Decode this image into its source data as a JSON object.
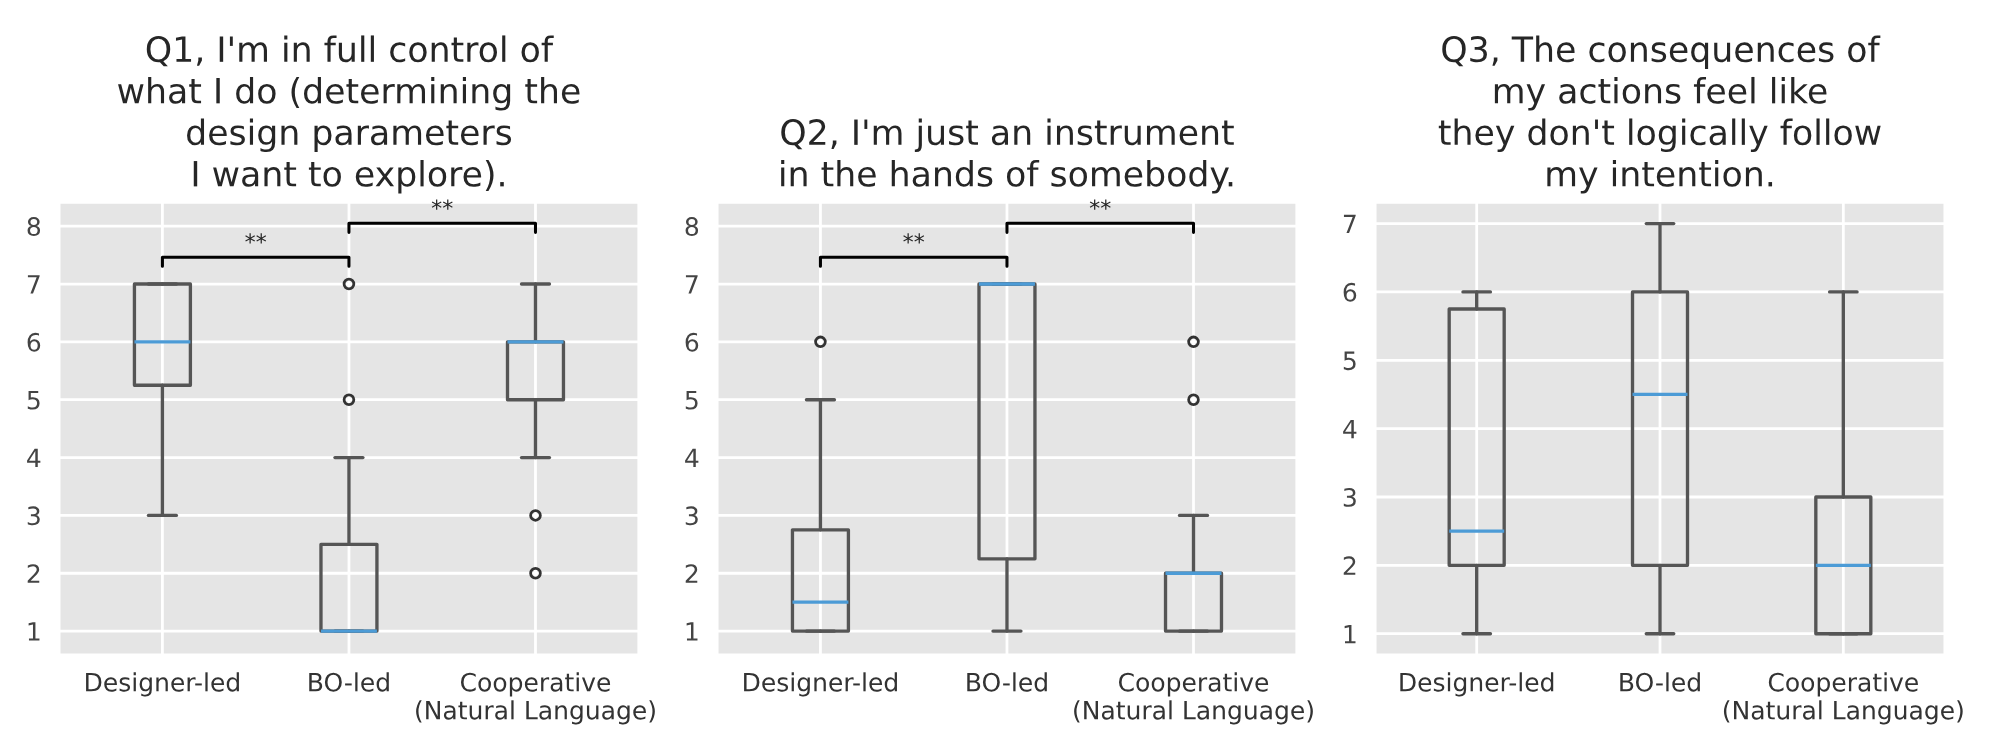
{
  "chart_data": [
    {
      "type": "box",
      "title": "Q1, I'm in full control of\nwhat I do (determining the\ndesign parameters\nI want to explore).",
      "categories": [
        "Designer-led",
        "BO-led",
        "Cooperative\n(Natural Language)"
      ],
      "boxes": [
        {
          "low": 3,
          "q1": 5.25,
          "median": 6,
          "q3": 7,
          "high": 7
        },
        {
          "low": 1,
          "q1": 1,
          "median": 1,
          "q3": 2.5,
          "high": 4,
          "outliers": [
            5,
            7
          ]
        },
        {
          "low": 4,
          "q1": 5,
          "median": 6,
          "q3": 6,
          "high": 7,
          "outliers": [
            2,
            3
          ]
        }
      ],
      "ylim": [
        0.6,
        8.4
      ],
      "yticks": [
        1,
        2,
        3,
        4,
        5,
        6,
        7,
        8
      ],
      "grid": true,
      "annotations": [
        "**",
        "**"
      ]
    },
    {
      "type": "box",
      "title": "Q2, I'm just an instrument\nin the hands of somebody.",
      "categories": [
        "Designer-led",
        "BO-led",
        "Cooperative\n(Natural Language)"
      ],
      "boxes": [
        {
          "low": 1,
          "q1": 1,
          "median": 1.5,
          "q3": 2.75,
          "high": 5,
          "outliers": [
            6
          ]
        },
        {
          "low": 1,
          "q1": 2.25,
          "median": 7,
          "q3": 7,
          "high": 7
        },
        {
          "low": 1,
          "q1": 1,
          "median": 2,
          "q3": 2,
          "high": 3,
          "outliers": [
            5,
            6
          ]
        }
      ],
      "ylim": [
        0.6,
        8.4
      ],
      "yticks": [
        1,
        2,
        3,
        4,
        5,
        6,
        7,
        8
      ],
      "grid": true,
      "annotations": [
        "**",
        "**"
      ]
    },
    {
      "type": "box",
      "title": "Q3, The consequences of\nmy actions feel like\nthey don't logically follow\nmy intention.",
      "categories": [
        "Designer-led",
        "BO-led",
        "Cooperative\n(Natural Language)"
      ],
      "boxes": [
        {
          "low": 1,
          "q1": 2,
          "median": 2.5,
          "q3": 5.75,
          "high": 6
        },
        {
          "low": 1,
          "q1": 2,
          "median": 4.5,
          "q3": 6,
          "high": 7
        },
        {
          "low": 1,
          "q1": 1,
          "median": 2,
          "q3": 3,
          "high": 6
        }
      ],
      "ylim": [
        0.7,
        7.3
      ],
      "yticks": [
        1,
        2,
        3,
        4,
        5,
        6,
        7
      ],
      "grid": true
    }
  ]
}
